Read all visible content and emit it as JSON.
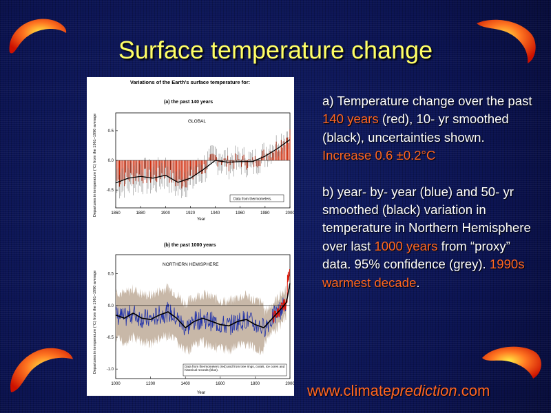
{
  "slide": {
    "title": "Surface temperature change",
    "desc_a": {
      "t1": "a) Temperature change over the past ",
      "h1": "140 years",
      "t2": " (red), 10- yr smoothed (black), uncertainties shown. ",
      "h2": "Increase 0.6 ±0.2°C"
    },
    "desc_b": {
      "t1": "b) year- by- year (blue) and 50- yr smoothed (black) variation in temperature in Northern Hemisphere over last ",
      "h1": "1000 years",
      "t2": " from “proxy” data. 95% confidence (grey). ",
      "h2": "1990s warmest decade",
      "t3": "."
    },
    "url": {
      "pre": "www.climate",
      "ital": "prediction",
      "post": ".com"
    }
  },
  "figure": {
    "heading": "Variations of the Earth’s surface temperature for:"
  },
  "colors": {
    "title": "#ffff66",
    "highlight": "#ff6622",
    "bars": "#cc2200",
    "proxy": "#2233aa",
    "band": "#c8b8a8"
  },
  "chart_data": [
    {
      "type": "bar",
      "title": "(a) the past 140 years",
      "region": "GLOBAL",
      "ylabel": "Departures in temperature (°C) from the 1961–1990 average",
      "xlabel": "Year",
      "xlim": [
        1860,
        2000
      ],
      "ylim": [
        -0.8,
        0.8
      ],
      "xticks": [
        "1860",
        "1880",
        "1900",
        "1920",
        "1940",
        "1960",
        "1980",
        "2000"
      ],
      "yticks": [
        "0.5",
        "0.0",
        "-0.5"
      ],
      "legend": "Data from thermometers.",
      "series": [
        {
          "name": "annual",
          "x": [
            1860,
            1870,
            1880,
            1890,
            1900,
            1910,
            1920,
            1930,
            1940,
            1950,
            1960,
            1970,
            1980,
            1990,
            2000
          ],
          "values": [
            -0.35,
            -0.3,
            -0.25,
            -0.3,
            -0.2,
            -0.4,
            -0.3,
            -0.15,
            0.05,
            -0.05,
            0.0,
            -0.05,
            0.1,
            0.25,
            0.45
          ]
        },
        {
          "name": "smoothed",
          "x": [
            1860,
            1870,
            1880,
            1890,
            1900,
            1910,
            1920,
            1930,
            1940,
            1950,
            1960,
            1970,
            1980,
            1990,
            2000
          ],
          "values": [
            -0.38,
            -0.3,
            -0.27,
            -0.3,
            -0.25,
            -0.37,
            -0.3,
            -0.16,
            0.0,
            -0.03,
            -0.02,
            -0.02,
            0.07,
            0.2,
            0.35
          ]
        }
      ]
    },
    {
      "type": "line",
      "title": "(b) the past 1000 years",
      "region": "NORTHERN HEMISPHERE",
      "ylabel": "Departures in temperature (°C) from the 1961–1990 average",
      "xlabel": "Year",
      "xlim": [
        1000,
        2000
      ],
      "ylim": [
        -1.15,
        0.8
      ],
      "xticks": [
        "1000",
        "1200",
        "1400",
        "1600",
        "1800",
        "2000"
      ],
      "yticks": [
        "0.5",
        "0.0",
        "-0.5",
        "-1.0"
      ],
      "legend": "Data from thermometers (red) and from tree rings, corals, ice cores and historical records (blue).",
      "series": [
        {
          "name": "smoothed",
          "x": [
            1000,
            1050,
            1100,
            1150,
            1200,
            1250,
            1300,
            1350,
            1400,
            1450,
            1500,
            1550,
            1600,
            1650,
            1700,
            1750,
            1800,
            1850,
            1900,
            1950,
            1980,
            2000
          ],
          "values": [
            -0.15,
            -0.2,
            -0.12,
            -0.2,
            -0.22,
            -0.15,
            -0.1,
            -0.2,
            -0.35,
            -0.25,
            -0.2,
            -0.25,
            -0.3,
            -0.32,
            -0.25,
            -0.22,
            -0.3,
            -0.35,
            -0.2,
            -0.05,
            0.05,
            0.35
          ]
        }
      ]
    }
  ]
}
